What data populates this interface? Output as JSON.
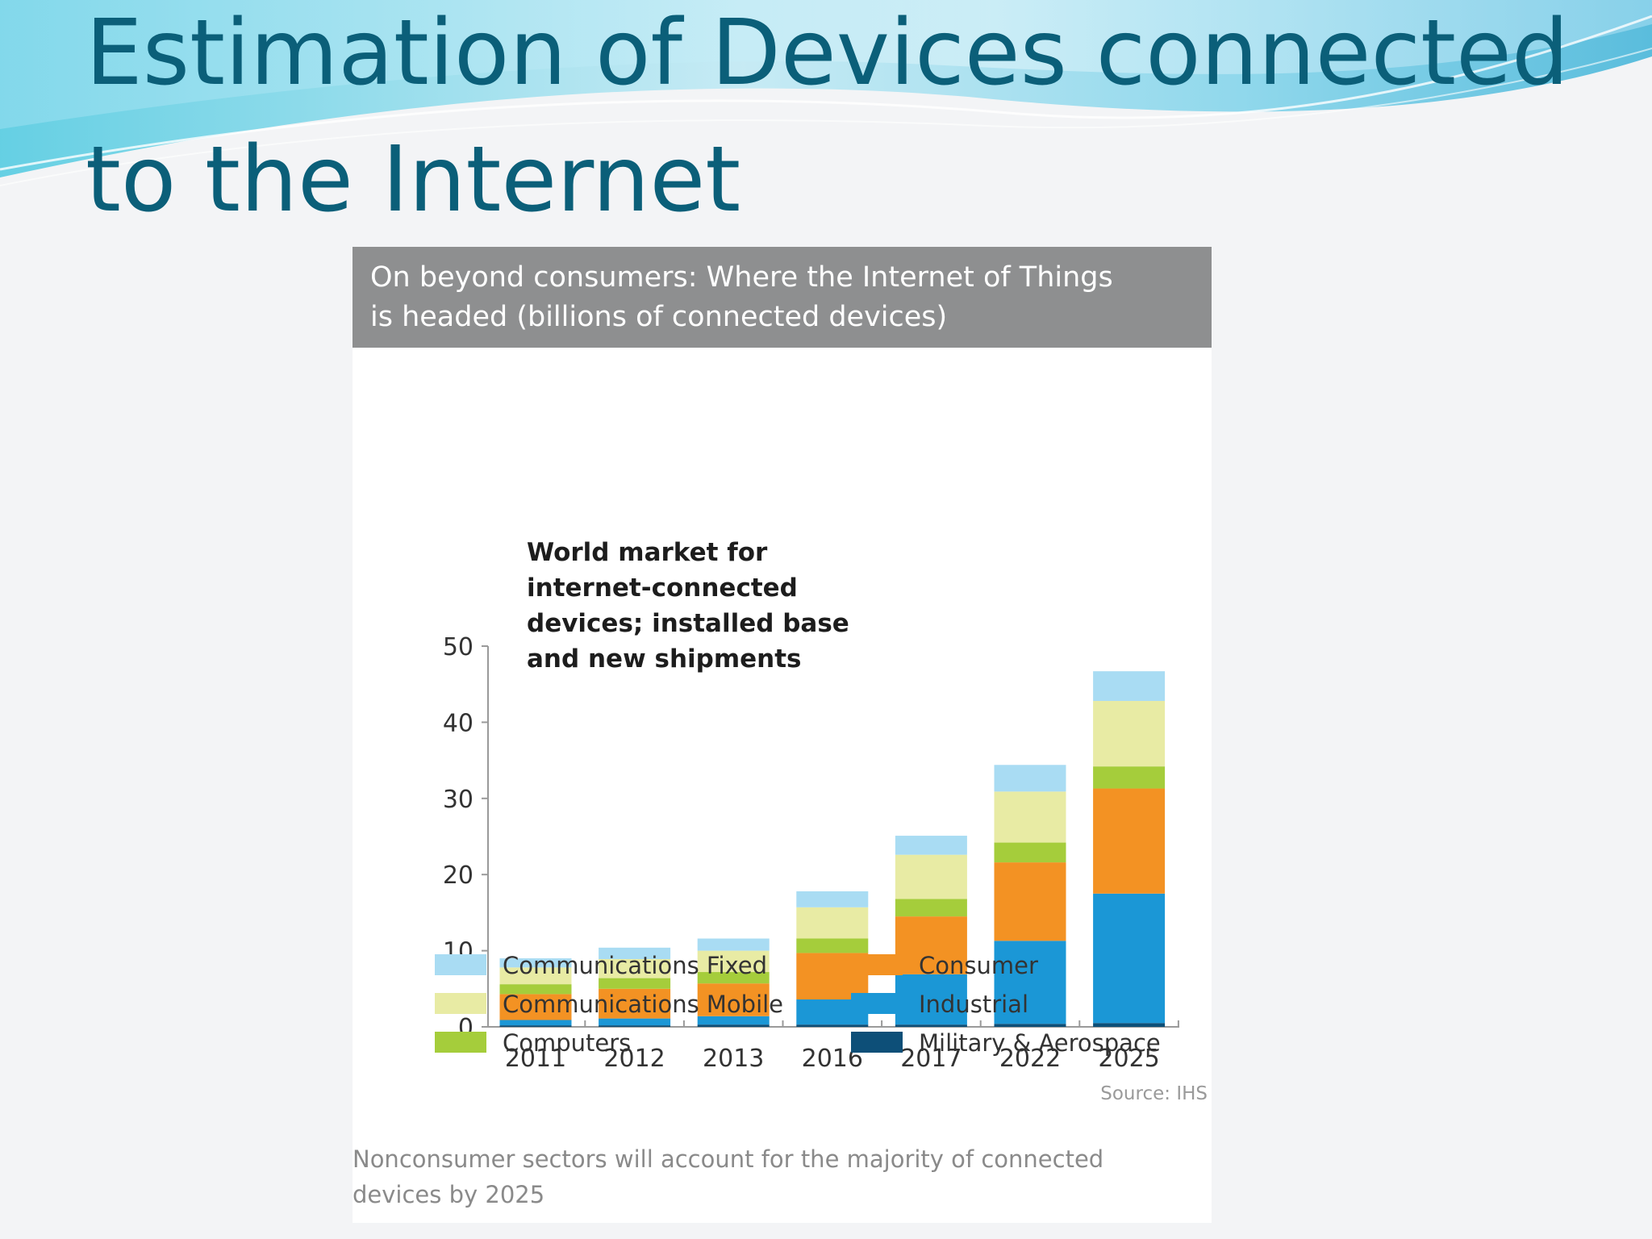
{
  "slide": {
    "title_line1": "Estimation of Devices connected",
    "title_line2": "to the Internet",
    "title_color": "#0b5f79"
  },
  "chart_header": {
    "line1": "On beyond consumers: Where the Internet of Things",
    "line2": "is headed (billions of connected devices)"
  },
  "chart_data": {
    "type": "bar",
    "stacked": true,
    "inner_title": [
      "World market for",
      "internet-connected",
      "devices; installed base",
      "and new shipments"
    ],
    "categories": [
      "2011",
      "2012",
      "2013",
      "2016",
      "2017",
      "2022",
      "2025"
    ],
    "ylim": [
      0,
      50
    ],
    "yticks": [
      0,
      10,
      20,
      30,
      40,
      50
    ],
    "grid": false,
    "legend_position": "bottom",
    "series": [
      {
        "name": "Military & Aerospace",
        "color": "#0d4f78",
        "values": [
          0.2,
          0.2,
          0.3,
          0.3,
          0.3,
          0.4,
          0.5
        ]
      },
      {
        "name": "Industrial",
        "color": "#1b97d6",
        "values": [
          0.7,
          0.9,
          1.1,
          3.3,
          6.6,
          10.9,
          17
        ]
      },
      {
        "name": "Consumer",
        "color": "#f39223",
        "values": [
          3.4,
          3.9,
          4.3,
          6.1,
          7.6,
          10.3,
          13.8
        ]
      },
      {
        "name": "Computers",
        "color": "#a5cd3b",
        "values": [
          1.3,
          1.4,
          1.5,
          1.9,
          2.3,
          2.6,
          2.9
        ]
      },
      {
        "name": "Communications Mobile",
        "color": "#e8eba4",
        "values": [
          2.2,
          2.5,
          2.8,
          4.1,
          5.8,
          6.7,
          8.6
        ]
      },
      {
        "name": "Communications Fixed",
        "color": "#a9dcf3",
        "values": [
          1.2,
          1.5,
          1.6,
          2.1,
          2.5,
          3.5,
          3.9
        ]
      }
    ],
    "legend": [
      {
        "label": "Communications Fixed",
        "color": "#a9dcf3"
      },
      {
        "label": "Communications Mobile",
        "color": "#e8eba4"
      },
      {
        "label": "Computers",
        "color": "#a5cd3b"
      },
      {
        "label": "Consumer",
        "color": "#f39223"
      },
      {
        "label": "Industrial",
        "color": "#1b97d6"
      },
      {
        "label": "Military & Aerospace",
        "color": "#0d4f78"
      }
    ],
    "source": "Source: IHS",
    "caption": [
      "Nonconsumer sectors will account for the majority of connected",
      "devices by 2025"
    ]
  }
}
